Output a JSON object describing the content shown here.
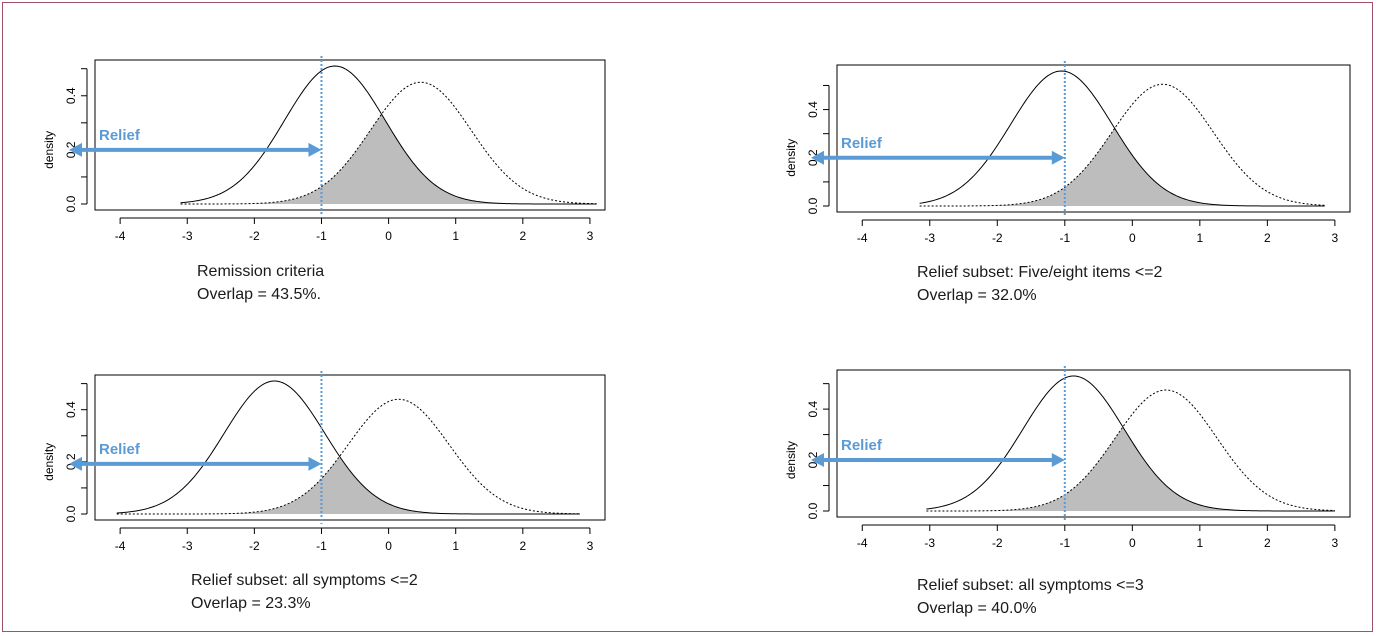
{
  "chart_data": [
    {
      "type": "area",
      "ylabel": "density",
      "xticks": [
        -4,
        -3,
        -2,
        -1,
        0,
        1,
        2,
        3
      ],
      "yticks": [
        "0.0",
        "0.2",
        "0.4"
      ],
      "xlim": [
        -4.3,
        3.15
      ],
      "ylim": [
        0,
        0.51
      ],
      "cutoff": -1,
      "annotation": "Relief",
      "caption": [
        "Remission criteria",
        "Overlap = 43.5%."
      ],
      "series": [
        {
          "style": "solid",
          "mean": -0.8,
          "peak": 0.51,
          "x_range": [
            -3.1,
            3.1
          ]
        },
        {
          "style": "dotted",
          "mean": 0.48,
          "peak": 0.45,
          "x_range": [
            -3.1,
            3.1
          ]
        }
      ]
    },
    {
      "type": "area",
      "ylabel": "density",
      "xticks": [
        -4,
        -3,
        -2,
        -1,
        0,
        1,
        2,
        3
      ],
      "yticks": [
        "0.0",
        "0.2",
        "0.4"
      ],
      "xlim": [
        -4.3,
        3.15
      ],
      "ylim": [
        0,
        0.56
      ],
      "cutoff": -1,
      "annotation": "Relief",
      "caption": [
        "Relief subset: Five/eight items <=2",
        "Overlap = 32.0%"
      ],
      "series": [
        {
          "style": "solid",
          "mean": -1.05,
          "peak": 0.56,
          "x_range": [
            -3.15,
            2.85
          ]
        },
        {
          "style": "dotted",
          "mean": 0.45,
          "peak": 0.505,
          "x_range": [
            -3.15,
            2.85
          ]
        }
      ]
    },
    {
      "type": "area",
      "ylabel": "density",
      "xticks": [
        -4,
        -3,
        -2,
        -1,
        0,
        1,
        2,
        3
      ],
      "yticks": [
        "0.0",
        "0.2",
        "0.4"
      ],
      "xlim": [
        -4.3,
        3.15
      ],
      "ylim": [
        0,
        0.51
      ],
      "cutoff": -1,
      "annotation": "Relief",
      "caption": [
        "Relief subset: all symptoms <=2",
        "Overlap = 23.3%"
      ],
      "series": [
        {
          "style": "solid",
          "mean": -1.7,
          "peak": 0.51,
          "x_range": [
            -4.05,
            2.85
          ]
        },
        {
          "style": "dotted",
          "mean": 0.15,
          "peak": 0.44,
          "x_range": [
            -4.05,
            2.85
          ]
        }
      ]
    },
    {
      "type": "area",
      "ylabel": "density",
      "xticks": [
        -4,
        -3,
        -2,
        -1,
        0,
        1,
        2,
        3
      ],
      "yticks": [
        "0.0",
        "0.2",
        "0.4"
      ],
      "xlim": [
        -4.3,
        3.15
      ],
      "ylim": [
        0,
        0.53
      ],
      "cutoff": -1,
      "annotation": "Relief",
      "caption": [
        "Relief subset: all symptoms <=3",
        "Overlap = 40.0%"
      ],
      "series": [
        {
          "style": "solid",
          "mean": -0.87,
          "peak": 0.53,
          "x_range": [
            -3.05,
            3.0
          ]
        },
        {
          "style": "dotted",
          "mean": 0.5,
          "peak": 0.475,
          "x_range": [
            -3.05,
            3.0
          ]
        }
      ]
    }
  ],
  "colors": {
    "curve": "#000000",
    "overlap_fill": "#bdbdbd",
    "relief_arrow": "#5b9bd5",
    "cutoff_line": "#5b9bd5",
    "frame_border": "#a0526c"
  }
}
